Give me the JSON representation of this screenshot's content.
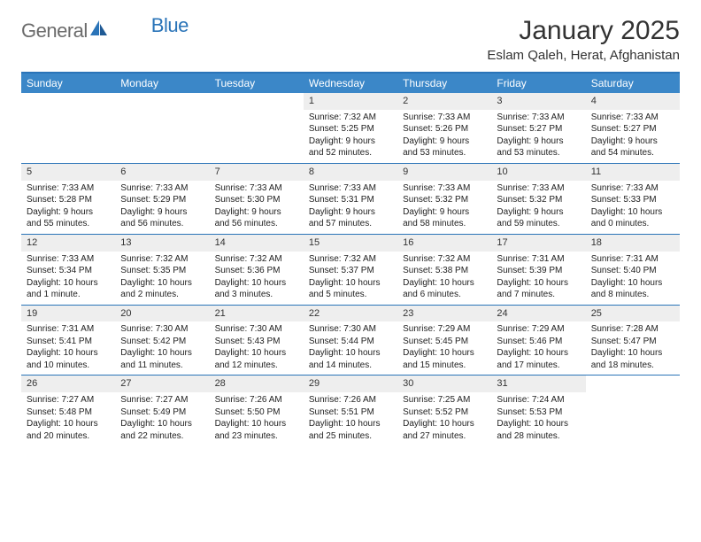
{
  "brand": {
    "general": "General",
    "blue": "Blue"
  },
  "title": "January 2025",
  "location": "Eslam Qaleh, Herat, Afghanistan",
  "colors": {
    "header_bg": "#3b87c8",
    "border": "#2a74b8",
    "daynum_bg": "#eeeeee",
    "text": "#222222"
  },
  "day_headers": [
    "Sunday",
    "Monday",
    "Tuesday",
    "Wednesday",
    "Thursday",
    "Friday",
    "Saturday"
  ],
  "weeks": [
    [
      null,
      null,
      null,
      {
        "n": "1",
        "sr": "7:32 AM",
        "ss": "5:25 PM",
        "dl": "9 hours and 52 minutes."
      },
      {
        "n": "2",
        "sr": "7:33 AM",
        "ss": "5:26 PM",
        "dl": "9 hours and 53 minutes."
      },
      {
        "n": "3",
        "sr": "7:33 AM",
        "ss": "5:27 PM",
        "dl": "9 hours and 53 minutes."
      },
      {
        "n": "4",
        "sr": "7:33 AM",
        "ss": "5:27 PM",
        "dl": "9 hours and 54 minutes."
      }
    ],
    [
      {
        "n": "5",
        "sr": "7:33 AM",
        "ss": "5:28 PM",
        "dl": "9 hours and 55 minutes."
      },
      {
        "n": "6",
        "sr": "7:33 AM",
        "ss": "5:29 PM",
        "dl": "9 hours and 56 minutes."
      },
      {
        "n": "7",
        "sr": "7:33 AM",
        "ss": "5:30 PM",
        "dl": "9 hours and 56 minutes."
      },
      {
        "n": "8",
        "sr": "7:33 AM",
        "ss": "5:31 PM",
        "dl": "9 hours and 57 minutes."
      },
      {
        "n": "9",
        "sr": "7:33 AM",
        "ss": "5:32 PM",
        "dl": "9 hours and 58 minutes."
      },
      {
        "n": "10",
        "sr": "7:33 AM",
        "ss": "5:32 PM",
        "dl": "9 hours and 59 minutes."
      },
      {
        "n": "11",
        "sr": "7:33 AM",
        "ss": "5:33 PM",
        "dl": "10 hours and 0 minutes."
      }
    ],
    [
      {
        "n": "12",
        "sr": "7:33 AM",
        "ss": "5:34 PM",
        "dl": "10 hours and 1 minute."
      },
      {
        "n": "13",
        "sr": "7:32 AM",
        "ss": "5:35 PM",
        "dl": "10 hours and 2 minutes."
      },
      {
        "n": "14",
        "sr": "7:32 AM",
        "ss": "5:36 PM",
        "dl": "10 hours and 3 minutes."
      },
      {
        "n": "15",
        "sr": "7:32 AM",
        "ss": "5:37 PM",
        "dl": "10 hours and 5 minutes."
      },
      {
        "n": "16",
        "sr": "7:32 AM",
        "ss": "5:38 PM",
        "dl": "10 hours and 6 minutes."
      },
      {
        "n": "17",
        "sr": "7:31 AM",
        "ss": "5:39 PM",
        "dl": "10 hours and 7 minutes."
      },
      {
        "n": "18",
        "sr": "7:31 AM",
        "ss": "5:40 PM",
        "dl": "10 hours and 8 minutes."
      }
    ],
    [
      {
        "n": "19",
        "sr": "7:31 AM",
        "ss": "5:41 PM",
        "dl": "10 hours and 10 minutes."
      },
      {
        "n": "20",
        "sr": "7:30 AM",
        "ss": "5:42 PM",
        "dl": "10 hours and 11 minutes."
      },
      {
        "n": "21",
        "sr": "7:30 AM",
        "ss": "5:43 PM",
        "dl": "10 hours and 12 minutes."
      },
      {
        "n": "22",
        "sr": "7:30 AM",
        "ss": "5:44 PM",
        "dl": "10 hours and 14 minutes."
      },
      {
        "n": "23",
        "sr": "7:29 AM",
        "ss": "5:45 PM",
        "dl": "10 hours and 15 minutes."
      },
      {
        "n": "24",
        "sr": "7:29 AM",
        "ss": "5:46 PM",
        "dl": "10 hours and 17 minutes."
      },
      {
        "n": "25",
        "sr": "7:28 AM",
        "ss": "5:47 PM",
        "dl": "10 hours and 18 minutes."
      }
    ],
    [
      {
        "n": "26",
        "sr": "7:27 AM",
        "ss": "5:48 PM",
        "dl": "10 hours and 20 minutes."
      },
      {
        "n": "27",
        "sr": "7:27 AM",
        "ss": "5:49 PM",
        "dl": "10 hours and 22 minutes."
      },
      {
        "n": "28",
        "sr": "7:26 AM",
        "ss": "5:50 PM",
        "dl": "10 hours and 23 minutes."
      },
      {
        "n": "29",
        "sr": "7:26 AM",
        "ss": "5:51 PM",
        "dl": "10 hours and 25 minutes."
      },
      {
        "n": "30",
        "sr": "7:25 AM",
        "ss": "5:52 PM",
        "dl": "10 hours and 27 minutes."
      },
      {
        "n": "31",
        "sr": "7:24 AM",
        "ss": "5:53 PM",
        "dl": "10 hours and 28 minutes."
      },
      null
    ]
  ],
  "labels": {
    "sunrise": "Sunrise:",
    "sunset": "Sunset:",
    "daylight": "Daylight:"
  }
}
